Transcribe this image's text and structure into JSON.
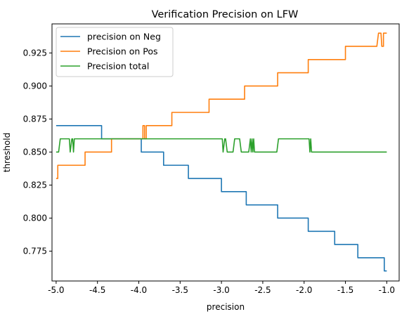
{
  "chart_data": {
    "type": "line",
    "title": "Verification Precision on LFW",
    "xlabel": "precision",
    "ylabel": "threshold",
    "xlim": [
      -5.05,
      -0.85
    ],
    "ylim": [
      0.7524,
      0.947
    ],
    "xticks": [
      "-5.0",
      "-4.5",
      "-4.0",
      "-3.5",
      "-3.0",
      "-2.5",
      "-2.0",
      "-1.5",
      "-1.0"
    ],
    "yticks": [
      "0.775",
      "0.800",
      "0.825",
      "0.850",
      "0.875",
      "0.900",
      "0.925"
    ],
    "grid": false,
    "legend_position": "top-left",
    "series": [
      {
        "name": "precision on Neg",
        "color": "#1f77b4",
        "points": [
          [
            -5.0,
            0.87
          ],
          [
            -4.45,
            0.87
          ],
          [
            -4.45,
            0.86
          ],
          [
            -3.97,
            0.86
          ],
          [
            -3.97,
            0.85
          ],
          [
            -3.7,
            0.85
          ],
          [
            -3.7,
            0.84
          ],
          [
            -3.4,
            0.84
          ],
          [
            -3.4,
            0.83
          ],
          [
            -3.0,
            0.83
          ],
          [
            -3.0,
            0.82
          ],
          [
            -2.7,
            0.82
          ],
          [
            -2.7,
            0.81
          ],
          [
            -2.32,
            0.81
          ],
          [
            -2.32,
            0.8
          ],
          [
            -1.95,
            0.8
          ],
          [
            -1.95,
            0.79
          ],
          [
            -1.63,
            0.79
          ],
          [
            -1.63,
            0.78
          ],
          [
            -1.35,
            0.78
          ],
          [
            -1.35,
            0.77
          ],
          [
            -1.03,
            0.77
          ],
          [
            -1.03,
            0.76
          ],
          [
            -1.0,
            0.76
          ]
        ]
      },
      {
        "name": "Precision on Pos",
        "color": "#ff7f0e",
        "points": [
          [
            -5.0,
            0.83
          ],
          [
            -4.98,
            0.83
          ],
          [
            -4.98,
            0.84
          ],
          [
            -4.65,
            0.84
          ],
          [
            -4.65,
            0.85
          ],
          [
            -4.33,
            0.85
          ],
          [
            -4.33,
            0.86
          ],
          [
            -3.95,
            0.86
          ],
          [
            -3.95,
            0.87
          ],
          [
            -3.93,
            0.87
          ],
          [
            -3.93,
            0.86
          ],
          [
            -3.91,
            0.86
          ],
          [
            -3.91,
            0.87
          ],
          [
            -3.6,
            0.87
          ],
          [
            -3.6,
            0.88
          ],
          [
            -3.15,
            0.88
          ],
          [
            -3.15,
            0.89
          ],
          [
            -2.72,
            0.89
          ],
          [
            -2.72,
            0.9
          ],
          [
            -2.32,
            0.9
          ],
          [
            -2.32,
            0.91
          ],
          [
            -1.95,
            0.91
          ],
          [
            -1.95,
            0.92
          ],
          [
            -1.5,
            0.92
          ],
          [
            -1.5,
            0.93
          ],
          [
            -1.12,
            0.93
          ],
          [
            -1.1,
            0.94
          ],
          [
            -1.07,
            0.94
          ],
          [
            -1.06,
            0.93
          ],
          [
            -1.04,
            0.93
          ],
          [
            -1.04,
            0.94
          ],
          [
            -1.0,
            0.94
          ]
        ]
      },
      {
        "name": "Precision total",
        "color": "#2ca02c",
        "points": [
          [
            -5.0,
            0.85
          ],
          [
            -4.97,
            0.85
          ],
          [
            -4.95,
            0.86
          ],
          [
            -4.84,
            0.86
          ],
          [
            -4.83,
            0.85
          ],
          [
            -4.81,
            0.86
          ],
          [
            -4.8,
            0.86
          ],
          [
            -4.79,
            0.85
          ],
          [
            -4.78,
            0.86
          ],
          [
            -2.99,
            0.86
          ],
          [
            -2.98,
            0.85
          ],
          [
            -2.96,
            0.86
          ],
          [
            -2.95,
            0.86
          ],
          [
            -2.93,
            0.85
          ],
          [
            -2.86,
            0.85
          ],
          [
            -2.84,
            0.86
          ],
          [
            -2.78,
            0.86
          ],
          [
            -2.76,
            0.85
          ],
          [
            -2.67,
            0.85
          ],
          [
            -2.65,
            0.86
          ],
          [
            -2.64,
            0.85
          ],
          [
            -2.63,
            0.86
          ],
          [
            -2.62,
            0.85
          ],
          [
            -2.61,
            0.86
          ],
          [
            -2.6,
            0.85
          ],
          [
            -2.33,
            0.85
          ],
          [
            -2.31,
            0.86
          ],
          [
            -1.94,
            0.86
          ],
          [
            -1.93,
            0.85
          ],
          [
            -1.92,
            0.86
          ],
          [
            -1.91,
            0.85
          ],
          [
            -1.0,
            0.85
          ]
        ]
      }
    ]
  }
}
